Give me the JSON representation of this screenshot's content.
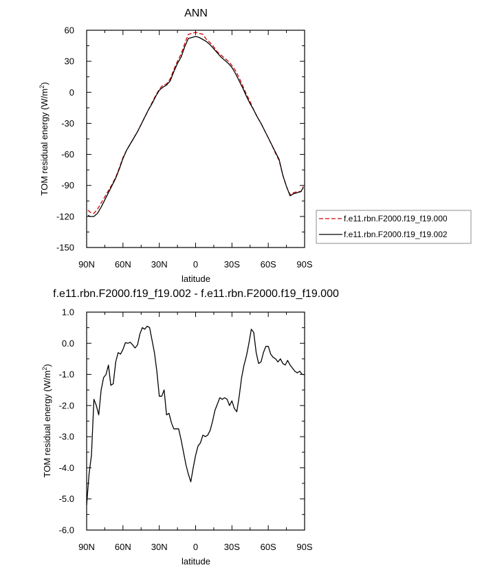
{
  "chart_data": [
    {
      "type": "line",
      "title": "ANN",
      "xlabel": "latitude",
      "ylabel": "TOM residual energy (W/m",
      "ylabel_sup": "2",
      "ylabel_end": ")",
      "x_direction": "descending",
      "xlim": [
        90,
        -90
      ],
      "ylim": [
        -150,
        60
      ],
      "x_ticks": [
        90,
        60,
        30,
        0,
        -30,
        -60,
        -90
      ],
      "x_tick_labels": [
        "90N",
        "60N",
        "30N",
        "0",
        "30S",
        "60S",
        "90S"
      ],
      "y_ticks": [
        60,
        30,
        0,
        -30,
        -60,
        -90,
        -120,
        -150
      ],
      "y_tick_labels": [
        "60",
        "30",
        "0",
        "-30",
        "-60",
        "-90",
        "-120",
        "-150"
      ],
      "grid": false,
      "legend_position": "right",
      "series": [
        {
          "name": "f.e11.rbn.F2000.f19_f19.000",
          "color": "#cc0000",
          "dash": "dashed",
          "x": [
            89,
            87,
            84,
            81,
            78,
            75,
            72,
            69,
            66,
            63,
            60,
            57,
            54,
            51,
            48,
            45,
            42,
            39,
            36,
            33,
            30,
            27,
            24,
            21,
            18,
            15,
            12,
            9,
            6,
            3,
            0,
            -3,
            -6,
            -9,
            -12,
            -15,
            -18,
            -21,
            -24,
            -27,
            -30,
            -33,
            -36,
            -39,
            -42,
            -45,
            -48,
            -51,
            -54,
            -57,
            -60,
            -63,
            -66,
            -69,
            -72,
            -75,
            -78,
            -81,
            -84,
            -87,
            -89
          ],
          "y": [
            -114,
            -116,
            -117,
            -113,
            -107,
            -101,
            -95,
            -89,
            -82,
            -73,
            -63,
            -56,
            -50,
            -44,
            -38,
            -31,
            -24,
            -17,
            -10,
            -3,
            3,
            7,
            8,
            13,
            22,
            30,
            37,
            47,
            56,
            57,
            58,
            57,
            56,
            51,
            48,
            44,
            39,
            36,
            33,
            30,
            26,
            21,
            14,
            6,
            -2,
            -9,
            -17,
            -24,
            -30,
            -37,
            -44,
            -51,
            -59,
            -66,
            -80,
            -91,
            -99,
            -97,
            -96,
            -96,
            -91
          ]
        },
        {
          "name": "f.e11.rbn.F2000.f19_f19.002",
          "color": "#000000",
          "dash": "solid",
          "x": [
            89,
            87,
            84,
            81,
            78,
            75,
            72,
            69,
            66,
            63,
            60,
            57,
            54,
            51,
            48,
            45,
            42,
            39,
            36,
            33,
            30,
            27,
            24,
            21,
            18,
            15,
            12,
            9,
            6,
            3,
            0,
            -3,
            -6,
            -9,
            -12,
            -15,
            -18,
            -21,
            -24,
            -27,
            -30,
            -33,
            -36,
            -39,
            -42,
            -45,
            -48,
            -51,
            -54,
            -57,
            -60,
            -63,
            -66,
            -69,
            -72,
            -75,
            -78,
            -81,
            -84,
            -87,
            -89
          ],
          "y": [
            -119,
            -120,
            -120,
            -117,
            -111,
            -104,
            -97,
            -90,
            -83,
            -74,
            -64,
            -56,
            -50,
            -44,
            -38,
            -31,
            -24,
            -17,
            -11,
            -4,
            2,
            5,
            7,
            11,
            20,
            28,
            34,
            44,
            52,
            53,
            54,
            53,
            51,
            49,
            46,
            42,
            38,
            34,
            31,
            28,
            24,
            18,
            11,
            4,
            -4,
            -11,
            -17,
            -24,
            -30,
            -37,
            -44,
            -51,
            -58,
            -65,
            -80,
            -91,
            -100,
            -98,
            -97,
            -96,
            -92
          ]
        }
      ]
    },
    {
      "type": "line",
      "title": "f.e11.rbn.F2000.f19_f19.002 - f.e11.rbn.F2000.f19_f19.000",
      "xlabel": "latitude",
      "ylabel": "TOM residual energy (W/m",
      "ylabel_sup": "2",
      "ylabel_end": ")",
      "x_direction": "descending",
      "xlim": [
        90,
        -90
      ],
      "ylim": [
        -6.0,
        1.0
      ],
      "x_ticks": [
        90,
        60,
        30,
        0,
        -30,
        -60,
        -90
      ],
      "x_tick_labels": [
        "90N",
        "60N",
        "30N",
        "0",
        "30S",
        "60S",
        "90S"
      ],
      "y_ticks": [
        1,
        0,
        -1,
        -2,
        -3,
        -4,
        -5,
        -6
      ],
      "y_tick_labels": [
        "1.0",
        "0.0",
        "-1.0",
        "-2.0",
        "-3.0",
        "-4.0",
        "-5.0",
        "-6.0"
      ],
      "grid": false,
      "series": [
        {
          "color": "#000000",
          "dash": "solid",
          "x": [
            90,
            88,
            86,
            84,
            82,
            80,
            78,
            76,
            74,
            72,
            70,
            68,
            66,
            64,
            62,
            60,
            58,
            56,
            54,
            52,
            50,
            48,
            46,
            44,
            42,
            40,
            38,
            36,
            34,
            32,
            30,
            28,
            26,
            24,
            22,
            20,
            18,
            16,
            14,
            12,
            10,
            8,
            6,
            4,
            2,
            0,
            -2,
            -4,
            -6,
            -8,
            -10,
            -12,
            -14,
            -16,
            -18,
            -20,
            -22,
            -24,
            -26,
            -28,
            -30,
            -32,
            -34,
            -36,
            -38,
            -40,
            -42,
            -44,
            -46,
            -48,
            -50,
            -52,
            -54,
            -56,
            -58,
            -60,
            -62,
            -64,
            -66,
            -68,
            -70,
            -72,
            -74,
            -76,
            -78,
            -80,
            -82,
            -84,
            -86,
            -88,
            -90
          ],
          "y": [
            -5.2,
            -4.2,
            -3.6,
            -1.8,
            -2.0,
            -2.3,
            -1.5,
            -1.1,
            -1.0,
            -0.7,
            -1.35,
            -1.3,
            -0.6,
            -0.3,
            -0.35,
            -0.2,
            0.02,
            0.0,
            0.03,
            -0.05,
            -0.15,
            -0.05,
            0.3,
            0.5,
            0.45,
            0.55,
            0.5,
            0.1,
            -0.3,
            -0.9,
            -1.7,
            -1.7,
            -1.5,
            -2.3,
            -2.25,
            -2.55,
            -2.75,
            -2.75,
            -2.75,
            -3.1,
            -3.5,
            -3.9,
            -4.2,
            -4.45,
            -4.0,
            -3.6,
            -3.3,
            -3.2,
            -2.95,
            -3.0,
            -2.95,
            -2.8,
            -2.5,
            -2.15,
            -1.95,
            -1.75,
            -1.8,
            -1.75,
            -1.8,
            -2.0,
            -1.85,
            -2.1,
            -2.2,
            -1.7,
            -1.1,
            -0.7,
            -0.4,
            0.0,
            0.45,
            0.35,
            -0.3,
            -0.65,
            -0.6,
            -0.3,
            -0.1,
            -0.1,
            -0.35,
            -0.45,
            -0.5,
            -0.6,
            -0.5,
            -0.65,
            -0.7,
            -0.55,
            -0.7,
            -0.8,
            -0.9,
            -0.95,
            -0.9,
            -1.0,
            -1.0
          ]
        }
      ]
    }
  ]
}
